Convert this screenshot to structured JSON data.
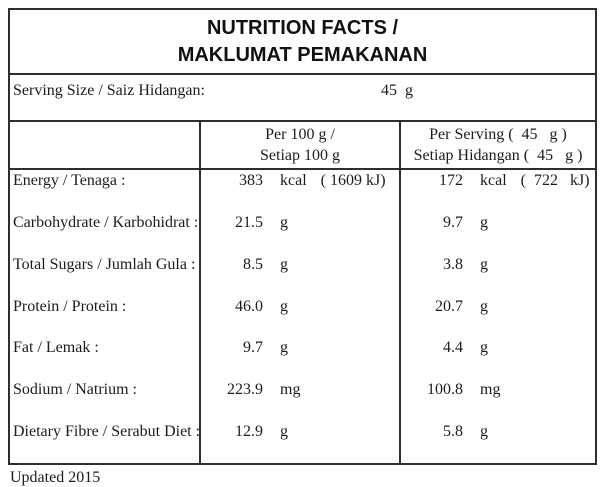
{
  "title": {
    "line1": "NUTRITION FACTS /",
    "line2": "MAKLUMAT PEMAKANAN"
  },
  "serving": {
    "label": "Serving Size / Saiz Hidangan:",
    "value": "45  g"
  },
  "columns": {
    "per100": {
      "line1": "Per 100 g /",
      "line2": "Setiap 100 g"
    },
    "perserving": {
      "line1": "Per Serving (  45   g )",
      "line2": "Setiap Hidangan (  45   g )"
    }
  },
  "rows": [
    {
      "label": "Energy / Tenaga :",
      "per100_value": "383",
      "per100_unit": "kcal",
      "per100_extra": "( 1609 kJ)",
      "serving_value": "172",
      "serving_unit": "kcal",
      "serving_extra": "(  722   kJ)"
    },
    {
      "label": "Carbohydrate / Karbohidrat :",
      "per100_value": "21.5",
      "per100_unit": "g",
      "serving_value": "9.7",
      "serving_unit": "g"
    },
    {
      "label": "Total Sugars / Jumlah Gula :",
      "per100_value": "8.5",
      "per100_unit": "g",
      "serving_value": "3.8",
      "serving_unit": "g"
    },
    {
      "label": "Protein / Protein :",
      "per100_value": "46.0",
      "per100_unit": "g",
      "serving_value": "20.7",
      "serving_unit": "g"
    },
    {
      "label": "Fat / Lemak :",
      "per100_value": "9.7",
      "per100_unit": "g",
      "serving_value": "4.4",
      "serving_unit": "g"
    },
    {
      "label": "Sodium / Natrium :",
      "per100_value": "223.9",
      "per100_unit": "mg",
      "serving_value": "100.8",
      "serving_unit": "mg"
    },
    {
      "label": "Dietary Fibre / Serabut Diet :",
      "per100_value": "12.9",
      "per100_unit": "g",
      "serving_value": "5.8",
      "serving_unit": "g"
    }
  ],
  "footer": {
    "clipped_text": "Updated 2015"
  },
  "colors": {
    "border": "#2e2e2e",
    "text": "#1c1c1c",
    "background": "#ffffff"
  }
}
